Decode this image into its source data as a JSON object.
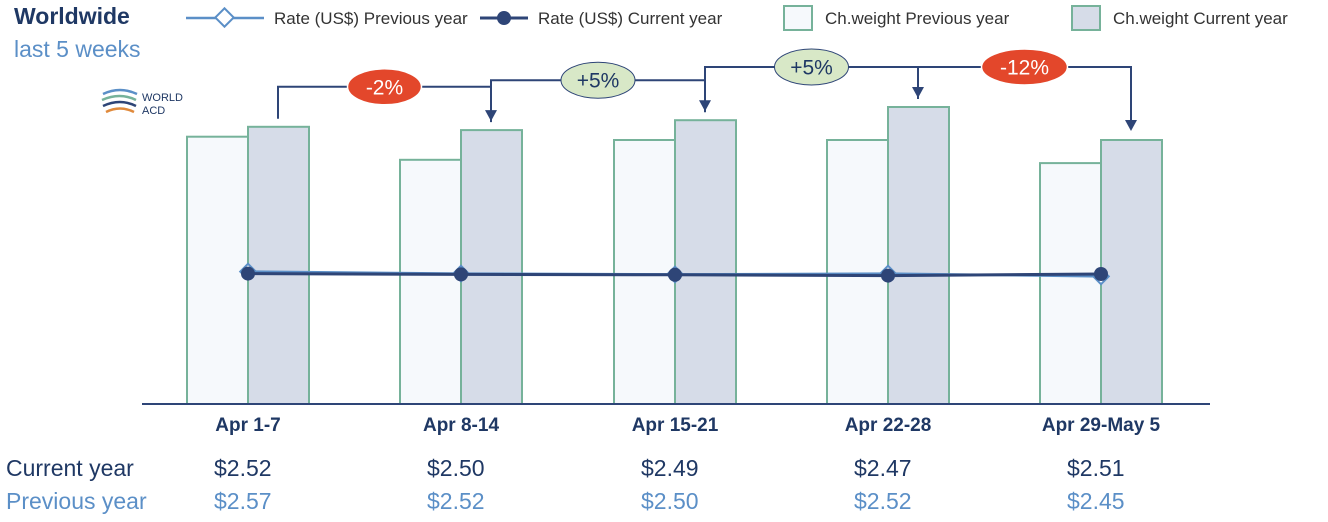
{
  "header": {
    "title": "Worldwide",
    "subtitle": "last 5 weeks"
  },
  "logo": {
    "line1": "WORLD",
    "line2": "ACD"
  },
  "colors": {
    "navy": "#2e4577",
    "light_blue": "#5b8fc7",
    "bar_border": "#76b29a",
    "bar_prev_fill": "#f6f9fc",
    "bar_cur_fill": "#d6dce8",
    "badge_negative": "#e3472b",
    "badge_positive": "#d8e8c7"
  },
  "chart_data": {
    "type": "bar",
    "categories": [
      "Apr 1-7",
      "Apr 8-14",
      "Apr 15-21",
      "Apr 22-28",
      "Apr 29-May 5"
    ],
    "ylim": [
      0,
      1.0
    ],
    "series": [
      {
        "name": "Ch.weight Previous year",
        "kind": "bar",
        "values": [
          0.81,
          0.74,
          0.8,
          0.8,
          0.73
        ]
      },
      {
        "name": "Ch.weight Current year",
        "kind": "bar",
        "values": [
          0.84,
          0.83,
          0.86,
          0.9,
          0.8
        ]
      },
      {
        "name": "Rate (US$) Previous year",
        "kind": "line",
        "values": [
          2.57,
          2.52,
          2.5,
          2.52,
          2.45
        ]
      },
      {
        "name": "Rate (US$) Current year",
        "kind": "line",
        "values": [
          2.52,
          2.5,
          2.49,
          2.47,
          2.51
        ]
      }
    ],
    "legend": [
      {
        "label": "Rate (US$) Previous year",
        "icon": "line-diamond-icon"
      },
      {
        "label": "Rate (US$) Current year",
        "icon": "line-dot-icon"
      },
      {
        "label": "Ch.weight Previous year",
        "icon": "bar-swatch-light-icon"
      },
      {
        "label": "Ch.weight Current year",
        "icon": "bar-swatch-dark-icon"
      }
    ],
    "legend_position": "top",
    "changes": [
      {
        "label": "-2%",
        "sign": "negative"
      },
      {
        "label": "+5%",
        "sign": "positive"
      },
      {
        "label": "+5%",
        "sign": "positive"
      },
      {
        "label": "-12%",
        "sign": "negative"
      }
    ],
    "table": {
      "current_label": "Current year",
      "previous_label": "Previous year",
      "current": [
        "$2.52",
        "$2.50",
        "$2.49",
        "$2.47",
        "$2.51"
      ],
      "previous": [
        "$2.57",
        "$2.52",
        "$2.50",
        "$2.52",
        "$2.45"
      ]
    }
  }
}
